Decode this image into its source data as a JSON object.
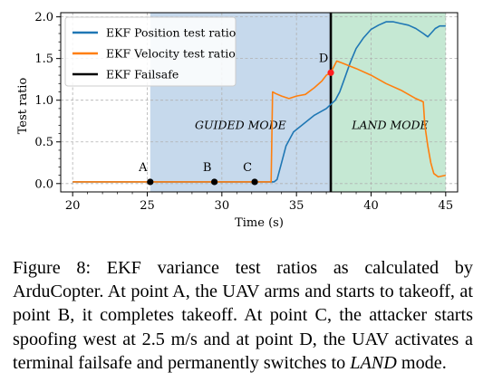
{
  "chart_data": {
    "type": "line",
    "xlabel": "Time (s)",
    "ylabel": "Test ratio",
    "xlim": [
      19.2,
      45.8
    ],
    "ylim": [
      -0.1,
      2.05
    ],
    "xticks": [
      20,
      25,
      30,
      35,
      40,
      45
    ],
    "yticks": [
      0.0,
      0.5,
      1.0,
      1.5,
      2.0
    ],
    "tick_labels_x": [
      "20",
      "25",
      "30",
      "35",
      "40",
      "45"
    ],
    "tick_labels_y": [
      "0.0",
      "0.5",
      "1.0",
      "1.5",
      "2.0"
    ],
    "grid": true,
    "legend_position": "top-left",
    "regions": [
      {
        "label": "GUIDED MODE",
        "x_start": 25.2,
        "x_end": 37.3,
        "color": "#c6d9ec"
      },
      {
        "label": "LAND MODE",
        "x_start": 37.3,
        "x_end": 45.0,
        "color": "#c5e8d3"
      }
    ],
    "failsafe_x": 37.3,
    "series": [
      {
        "name": "EKF Position test ratio",
        "color": "#1f77b4",
        "x": [
          20.0,
          25.0,
          33.5,
          33.7,
          34.0,
          34.3,
          34.8,
          35.5,
          36.2,
          37.0,
          37.3,
          37.6,
          37.9,
          38.2,
          38.6,
          39.0,
          39.5,
          40.0,
          40.5,
          41.0,
          41.5,
          42.0,
          42.5,
          43.0,
          43.5,
          43.8,
          44.0,
          44.3,
          44.6,
          45.0
        ],
        "y": [
          0.02,
          0.02,
          0.02,
          0.05,
          0.25,
          0.45,
          0.62,
          0.72,
          0.82,
          0.9,
          0.95,
          1.0,
          1.1,
          1.25,
          1.45,
          1.62,
          1.75,
          1.85,
          1.9,
          1.94,
          1.94,
          1.92,
          1.9,
          1.86,
          1.8,
          1.76,
          1.8,
          1.86,
          1.89,
          1.89
        ]
      },
      {
        "name": "EKF Velocity test ratio",
        "color": "#ff7f0e",
        "x": [
          20.0,
          33.3,
          33.4,
          33.6,
          34.0,
          34.5,
          35.0,
          35.6,
          36.2,
          36.7,
          37.0,
          37.3,
          37.5,
          37.7,
          38.0,
          39.0,
          40.0,
          41.0,
          42.0,
          43.0,
          43.5,
          43.6,
          43.8,
          44.0,
          44.2,
          44.5,
          45.0
        ],
        "y": [
          0.02,
          0.02,
          1.1,
          1.08,
          1.05,
          1.02,
          1.05,
          1.07,
          1.15,
          1.23,
          1.3,
          1.33,
          1.4,
          1.47,
          1.45,
          1.38,
          1.3,
          1.2,
          1.12,
          1.02,
          0.98,
          0.7,
          0.45,
          0.25,
          0.12,
          0.08,
          0.1
        ]
      },
      {
        "name": "EKF Failsafe",
        "color": "#000000"
      }
    ],
    "points": [
      {
        "label": "A",
        "x": 25.2,
        "y": 0.02,
        "color": "#000000"
      },
      {
        "label": "B",
        "x": 29.5,
        "y": 0.02,
        "color": "#000000"
      },
      {
        "label": "C",
        "x": 32.2,
        "y": 0.02,
        "color": "#000000"
      },
      {
        "label": "D",
        "x": 37.3,
        "y": 1.33,
        "color": "#ff2020"
      }
    ]
  },
  "caption": {
    "p1": "Figure 8: EKF variance test ratios as calculated by ArduCopter. At point A, the UAV arms and starts to takeoff, at point B, it completes takeoff. At point C, the attacker starts spoofing west at 2.5 m/s and at point D, the UAV activates a terminal failsafe and permanently switches to ",
    "em": "LAND",
    "p2": " mode."
  }
}
